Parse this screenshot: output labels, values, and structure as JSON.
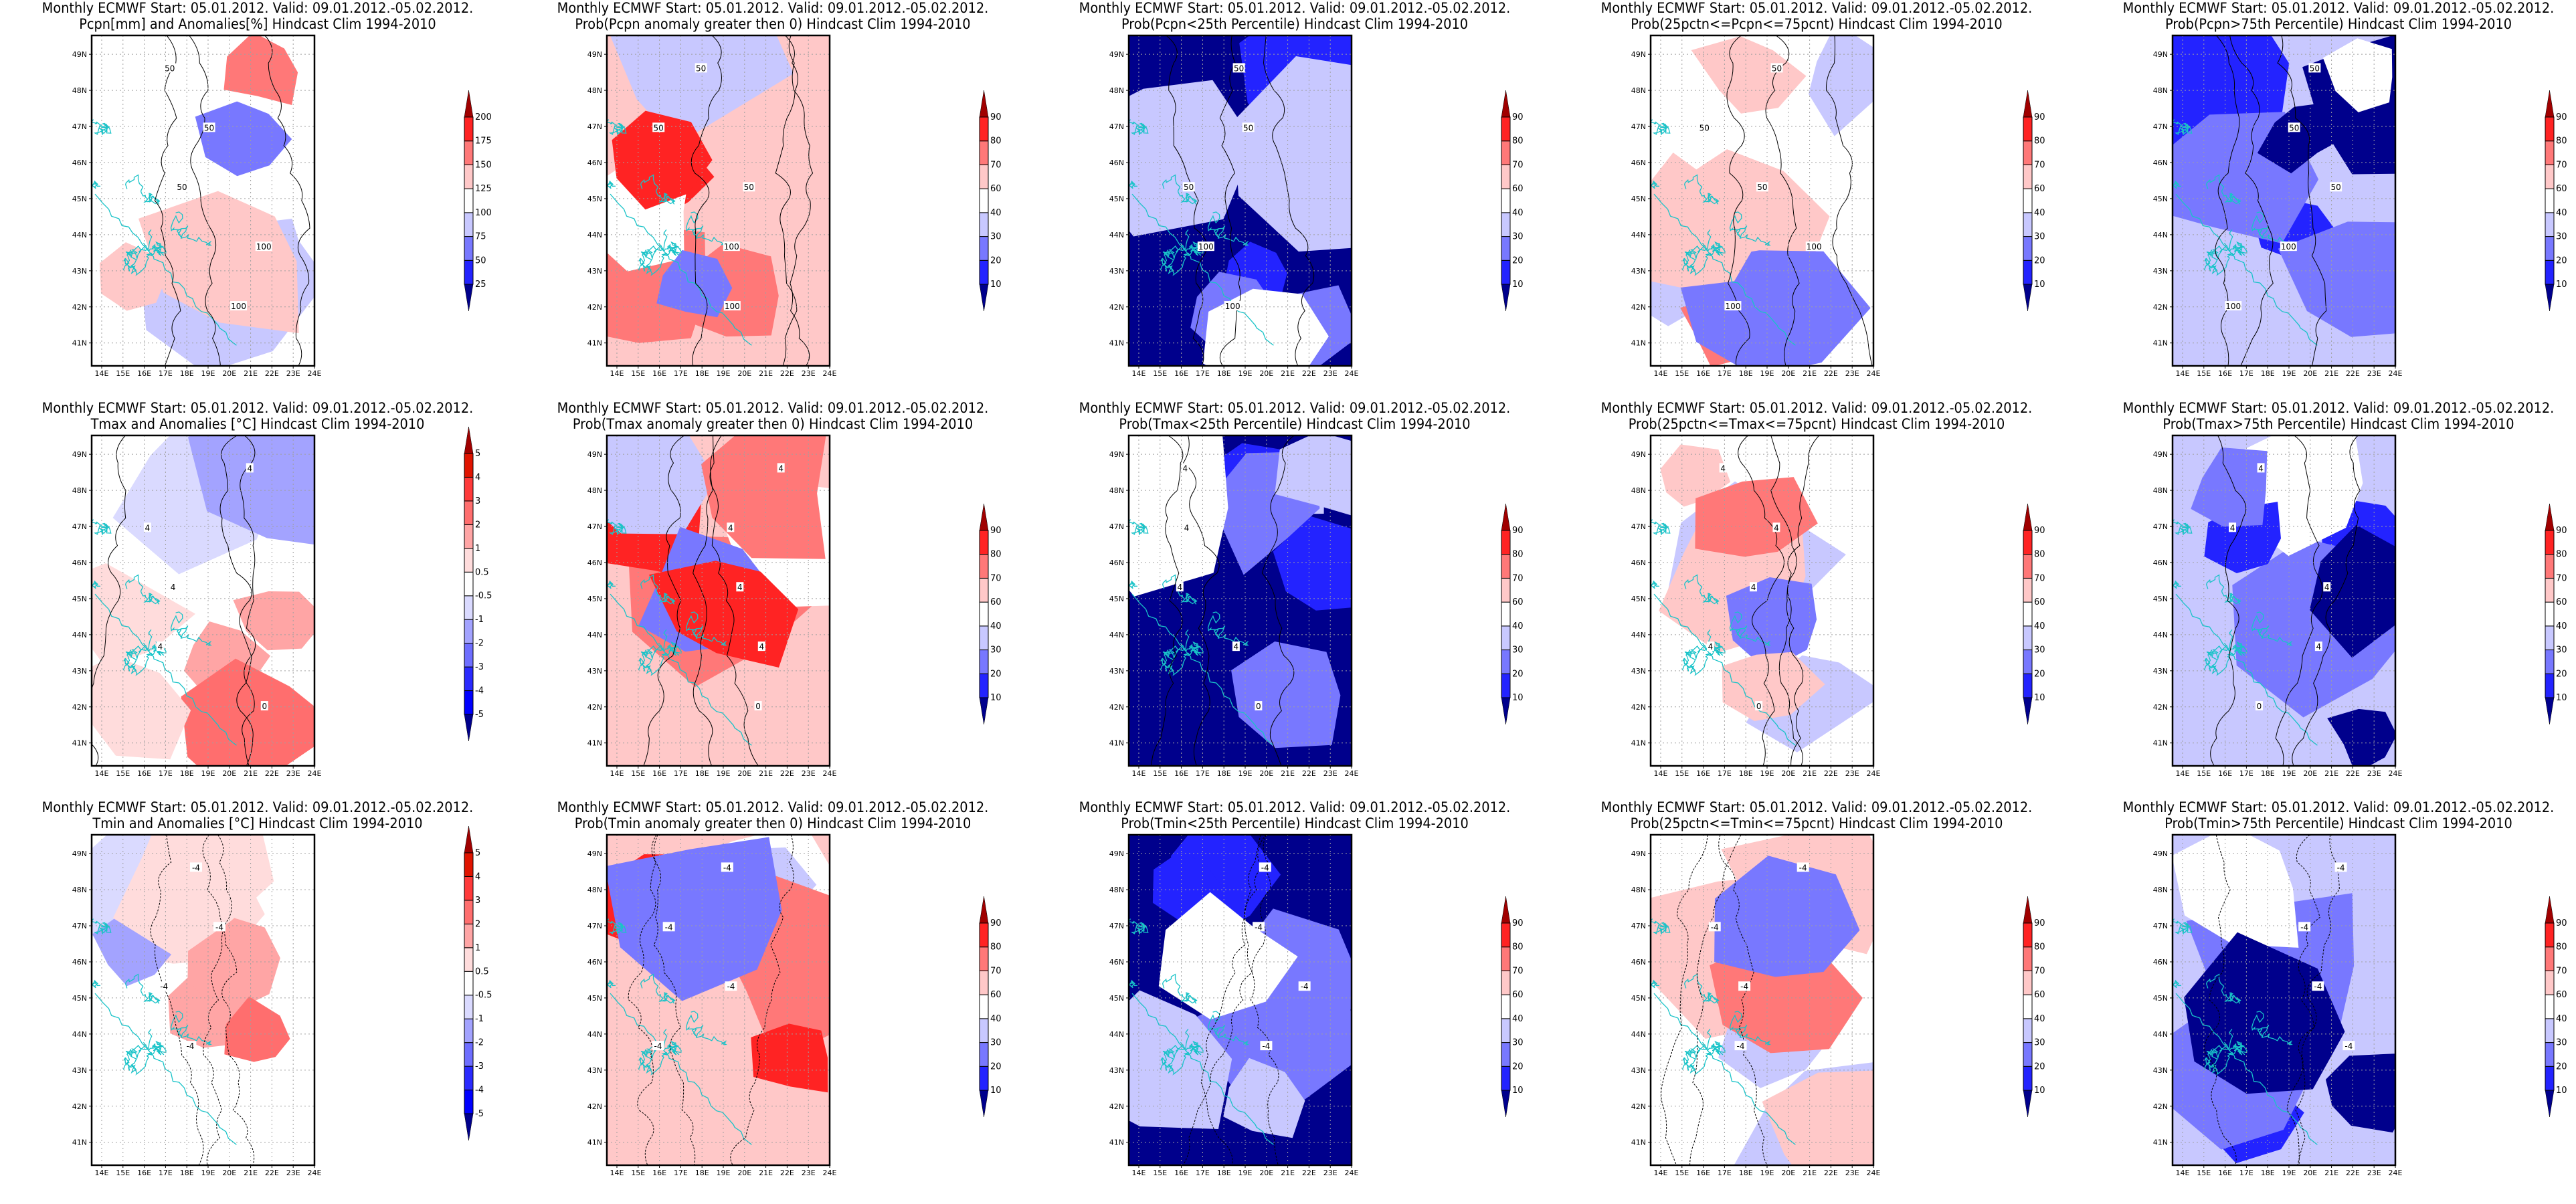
{
  "colors": {
    "border_cyan": "#19c3c8",
    "contour": "#000000",
    "prob_scale": [
      "#00008c",
      "#2323ff",
      "#7878ff",
      "#c8c8ff",
      "#ffffff",
      "#ffc8c8",
      "#ff7878",
      "#ff2323",
      "#a00000"
    ],
    "pcpn_scale": [
      "#00008c",
      "#2323ff",
      "#7878ff",
      "#c8c8ff",
      "#ffffff",
      "#ffc8c8",
      "#ff7878",
      "#ff2323",
      "#a00000"
    ],
    "temp_scale": [
      "#00008c",
      "#0000ff",
      "#2a2aff",
      "#6e6eff",
      "#a3a3ff",
      "#dadaff",
      "#ffffff",
      "#ffdcdc",
      "#ffa5a5",
      "#ff6e6e",
      "#ff3a3a",
      "#e01400",
      "#a00000"
    ]
  },
  "axes": {
    "lon_ticks": [
      "14E",
      "15E",
      "16E",
      "17E",
      "18E",
      "19E",
      "20E",
      "21E",
      "22E",
      "23E",
      "24E"
    ],
    "lat_ticks": [
      "49N",
      "48N",
      "47N",
      "46N",
      "45N",
      "44N",
      "43N",
      "42N",
      "41N"
    ]
  },
  "colorbars": {
    "pcpn": [
      "25",
      "50",
      "75",
      "100",
      "125",
      "150",
      "175",
      "200"
    ],
    "prob": [
      "10",
      "20",
      "30",
      "40",
      "60",
      "70",
      "80",
      "90"
    ],
    "temp": [
      "-5",
      "-4",
      "-3",
      "-2",
      "-1",
      "-0.5",
      "0.5",
      "1",
      "2",
      "3",
      "4",
      "5"
    ]
  },
  "chart_data": [
    {
      "type": "heatmap",
      "row": 0,
      "col": 0,
      "title_line1": "Monthly ECMWF Start: 05.01.2012. Valid: 09.01.2012.-05.02.2012.",
      "title_line2": "Pcpn[mm] and Anomalies[%] Hindcast Clim 1994-2010",
      "scale": "pcpn",
      "dominant": "mixed-pcpn",
      "contour_labels": [
        "50",
        "50",
        "50",
        "100",
        "100"
      ]
    },
    {
      "type": "heatmap",
      "row": 0,
      "col": 1,
      "title_line1": "Monthly ECMWF Start: 05.01.2012. Valid: 09.01.2012.-05.02.2012.",
      "title_line2": "Prob(Pcpn anomaly greater then 0) Hindcast Clim 1994-2010",
      "scale": "prob",
      "dominant": "mixed-red",
      "contour_labels": [
        "50",
        "50",
        "50",
        "100",
        "100"
      ]
    },
    {
      "type": "heatmap",
      "row": 0,
      "col": 2,
      "title_line1": "Monthly ECMWF Start: 05.01.2012. Valid: 09.01.2012.-05.02.2012.",
      "title_line2": "Prob(Pcpn<25th Percentile) Hindcast Clim 1994-2010",
      "scale": "prob",
      "dominant": "blue",
      "contour_labels": [
        "50",
        "50",
        "50",
        "100",
        "100"
      ]
    },
    {
      "type": "heatmap",
      "row": 0,
      "col": 3,
      "title_line1": "Monthly ECMWF Start: 05.01.2012. Valid: 09.01.2012.-05.02.2012.",
      "title_line2": "Prob(25pctn<=Pcpn<=75pcnt) Hindcast Clim 1994-2010",
      "scale": "prob",
      "dominant": "light",
      "contour_labels": [
        "50",
        "50",
        "50",
        "100",
        "100"
      ]
    },
    {
      "type": "heatmap",
      "row": 0,
      "col": 4,
      "title_line1": "Monthly ECMWF Start: 05.01.2012. Valid: 09.01.2012.-05.02.2012.",
      "title_line2": "Prob(Pcpn>75th Percentile) Hindcast Clim 1994-2010",
      "scale": "prob",
      "dominant": "mixed-blue",
      "contour_labels": [
        "50",
        "50",
        "50",
        "100",
        "100"
      ]
    },
    {
      "type": "heatmap",
      "row": 1,
      "col": 0,
      "title_line1": "Monthly ECMWF Start: 05.01.2012. Valid: 09.01.2012.-05.02.2012.",
      "title_line2": "Tmax and Anomalies [°C] Hindcast Clim 1994-2010",
      "scale": "temp",
      "dominant": "temp-warm",
      "contour_labels": [
        "4",
        "4",
        "4",
        "4",
        "0"
      ]
    },
    {
      "type": "heatmap",
      "row": 1,
      "col": 1,
      "title_line1": "Monthly ECMWF Start: 05.01.2012. Valid: 09.01.2012.-05.02.2012.",
      "title_line2": "Prob(Tmax anomaly greater then 0) Hindcast Clim 1994-2010",
      "scale": "prob",
      "dominant": "mixed-red",
      "contour_labels": [
        "4",
        "4",
        "4",
        "4",
        "0"
      ]
    },
    {
      "type": "heatmap",
      "row": 1,
      "col": 2,
      "title_line1": "Monthly ECMWF Start: 05.01.2012. Valid: 09.01.2012.-05.02.2012.",
      "title_line2": "Prob(Tmax<25th Percentile) Hindcast Clim 1994-2010",
      "scale": "prob",
      "dominant": "blue",
      "contour_labels": [
        "4",
        "4",
        "4",
        "4",
        "0"
      ]
    },
    {
      "type": "heatmap",
      "row": 1,
      "col": 3,
      "title_line1": "Monthly ECMWF Start: 05.01.2012. Valid: 09.01.2012.-05.02.2012.",
      "title_line2": "Prob(25pctn<=Tmax<=75pcnt) Hindcast Clim 1994-2010",
      "scale": "prob",
      "dominant": "light",
      "contour_labels": [
        "4",
        "4",
        "4",
        "4",
        "0"
      ]
    },
    {
      "type": "heatmap",
      "row": 1,
      "col": 4,
      "title_line1": "Monthly ECMWF Start: 05.01.2012. Valid: 09.01.2012.-05.02.2012.",
      "title_line2": "Prob(Tmax>75th Percentile) Hindcast Clim 1994-2010",
      "scale": "prob",
      "dominant": "mixed-blue",
      "contour_labels": [
        "4",
        "4",
        "4",
        "4",
        "0"
      ]
    },
    {
      "type": "heatmap",
      "row": 2,
      "col": 0,
      "title_line1": "Monthly ECMWF Start: 05.01.2012. Valid: 09.01.2012.-05.02.2012.",
      "title_line2": "Tmin and Anomalies [°C] Hindcast Clim 1994-2010",
      "scale": "temp",
      "dominant": "temp-warm",
      "contour_labels": [
        "-4",
        "-4",
        "-4",
        "-4"
      ]
    },
    {
      "type": "heatmap",
      "row": 2,
      "col": 1,
      "title_line1": "Monthly ECMWF Start: 05.01.2012. Valid: 09.01.2012.-05.02.2012.",
      "title_line2": "Prob(Tmin anomaly greater then 0) Hindcast Clim 1994-2010",
      "scale": "prob",
      "dominant": "mixed-red",
      "contour_labels": [
        "-4",
        "-4",
        "-4",
        "-4"
      ]
    },
    {
      "type": "heatmap",
      "row": 2,
      "col": 2,
      "title_line1": "Monthly ECMWF Start: 05.01.2012. Valid: 09.01.2012.-05.02.2012.",
      "title_line2": "Prob(Tmin<25th Percentile) Hindcast Clim 1994-2010",
      "scale": "prob",
      "dominant": "blue",
      "contour_labels": [
        "-4",
        "-4",
        "-4",
        "-4"
      ]
    },
    {
      "type": "heatmap",
      "row": 2,
      "col": 3,
      "title_line1": "Monthly ECMWF Start: 05.01.2012. Valid: 09.01.2012.-05.02.2012.",
      "title_line2": "Prob(25pctn<=Tmin<=75pcnt) Hindcast Clim 1994-2010",
      "scale": "prob",
      "dominant": "light",
      "contour_labels": [
        "-4",
        "-4",
        "-4",
        "-4"
      ]
    },
    {
      "type": "heatmap",
      "row": 2,
      "col": 4,
      "title_line1": "Monthly ECMWF Start: 05.01.2012. Valid: 09.01.2012.-05.02.2012.",
      "title_line2": "Prob(Tmin>75th Percentile) Hindcast Clim 1994-2010",
      "scale": "prob",
      "dominant": "mixed-blue",
      "contour_labels": [
        "-4",
        "-4",
        "-4",
        "-4"
      ]
    }
  ]
}
